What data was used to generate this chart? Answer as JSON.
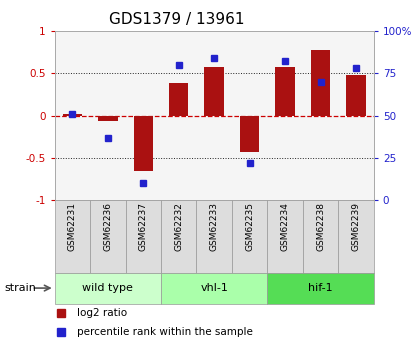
{
  "title": "GDS1379 / 13961",
  "samples": [
    "GSM62231",
    "GSM62236",
    "GSM62237",
    "GSM62232",
    "GSM62233",
    "GSM62235",
    "GSM62234",
    "GSM62238",
    "GSM62239"
  ],
  "log2_ratio": [
    0.02,
    -0.07,
    -0.65,
    0.38,
    0.58,
    -0.43,
    0.57,
    0.78,
    0.48
  ],
  "percentile_rank": [
    51,
    37,
    10,
    80,
    84,
    22,
    82,
    70,
    78
  ],
  "groups": [
    {
      "label": "wild type",
      "start": 0,
      "end": 3,
      "color": "#ccffcc"
    },
    {
      "label": "vhl-1",
      "start": 3,
      "end": 6,
      "color": "#aaffaa"
    },
    {
      "label": "hif-1",
      "start": 6,
      "end": 9,
      "color": "#55dd55"
    }
  ],
  "ylim_left": [
    -1,
    1
  ],
  "ylim_right": [
    0,
    100
  ],
  "bar_color": "#aa1111",
  "dot_color": "#2222cc",
  "hline_color": "#cc0000",
  "grid_color": "#222222",
  "plot_bg": "#f5f5f5",
  "left_yticks": [
    -1,
    -0.5,
    0,
    0.5,
    1
  ],
  "left_yticklabels": [
    "-1",
    "-0.5",
    "0",
    "0.5",
    "1"
  ],
  "right_yticks": [
    0,
    25,
    50,
    75,
    100
  ],
  "right_yticklabels": [
    "0",
    "25",
    "50",
    "75",
    "100%"
  ],
  "sample_label_color": "#dddddd",
  "spine_color": "#aaaaaa"
}
